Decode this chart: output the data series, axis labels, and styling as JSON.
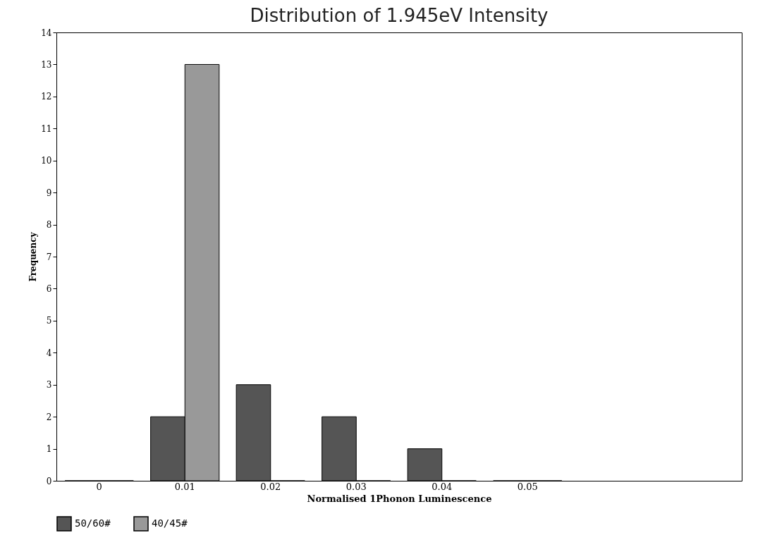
{
  "chart_data": {
    "type": "bar",
    "title": "Distribution of 1.945eV Intensity",
    "xlabel": "Normalised 1Phonon Luminescence",
    "ylabel": "Frequency",
    "categories": [
      "0",
      "0.01",
      "0.02",
      "0.03",
      "0.04",
      "0.05",
      null,
      null
    ],
    "series": [
      {
        "name": "50/60#",
        "color": "#555555",
        "values": [
          0,
          2,
          3,
          2,
          1,
          0,
          null,
          null
        ]
      },
      {
        "name": "40/45#",
        "color": "#999999",
        "values": [
          0,
          13,
          0,
          0,
          0,
          0,
          null,
          null
        ]
      }
    ],
    "ylim": [
      0,
      14
    ],
    "yticks": [
      0,
      1,
      2,
      3,
      4,
      5,
      6,
      7,
      8,
      9,
      10,
      11,
      12,
      13,
      14
    ],
    "grid": false,
    "legend": "bottom"
  }
}
